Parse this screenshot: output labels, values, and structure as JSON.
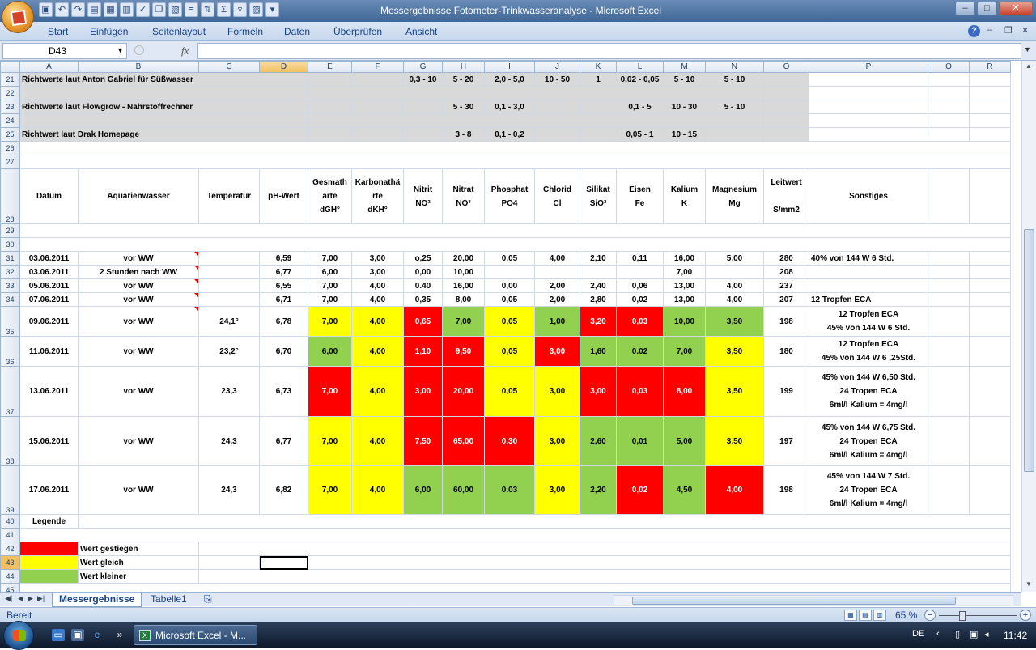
{
  "window": {
    "title": "Messergebnisse Fotometer-Trinkwasseranalyse - Microsoft Excel"
  },
  "ribbon_tabs": [
    "Start",
    "Einfügen",
    "Seitenlayout",
    "Formeln",
    "Daten",
    "Überprüfen",
    "Ansicht"
  ],
  "formula_bar": {
    "name_box": "D43",
    "fx": "fx",
    "value": ""
  },
  "columns": [
    "A",
    "B",
    "C",
    "D",
    "E",
    "F",
    "G",
    "H",
    "I",
    "J",
    "K",
    "L",
    "M",
    "N",
    "O",
    "P",
    "Q",
    "R"
  ],
  "reference_rows": {
    "r21": {
      "label": "Richtwerte laut Anton Gabriel für Süßwasser",
      "G": "0,3 - 10",
      "H": "5 - 20",
      "I": "2,0 - 5,0",
      "J": "10 - 50",
      "K": "1",
      "L": "0,02 - 0,05",
      "M": "5 - 10",
      "N": "5 - 10"
    },
    "r23": {
      "label": "Richtwerte laut Flowgrow - Nährstoffrechner",
      "H": "5 - 30",
      "I": "0,1 - 3,0",
      "L": "0,1 - 5",
      "M": "10 - 30",
      "N": "5 - 10"
    },
    "r25": {
      "label": "Richtwert laut Drak Homepage",
      "H": "3 - 8",
      "I": "0,1 - 0,2",
      "L": "0,05 - 1",
      "M": "10 - 15"
    }
  },
  "header": {
    "A": "Datum",
    "B": "Aquarienwasser",
    "C": "Temperatur",
    "D": "pH-Wert",
    "E": [
      "Gesmath",
      "ärte",
      "dGH°"
    ],
    "F": [
      "Karbonathä",
      "rte",
      "dKH°"
    ],
    "G": [
      "Nitrit",
      "NO²"
    ],
    "H": [
      "Nitrat",
      "NO³"
    ],
    "I": [
      "Phosphat",
      "PO4"
    ],
    "J": [
      "Chlorid",
      "Cl"
    ],
    "K": [
      "Silikat",
      "SiO²"
    ],
    "L": [
      "Eisen",
      "Fe"
    ],
    "M": [
      "Kalium",
      "K"
    ],
    "N": [
      "Magnesium",
      "Mg"
    ],
    "O": [
      "Leitwert",
      "",
      "S/mm2"
    ],
    "P": "Sonstiges"
  },
  "rows": [
    {
      "n": "31",
      "A": "03.06.2011",
      "B": "vor WW",
      "C": "",
      "D": "6,59",
      "E": "7,00",
      "F": "3,00",
      "G": "o,25",
      "H": "20,00",
      "I": "0,05",
      "J": "4,00",
      "K": "2,10",
      "L": "0,11",
      "M": "16,00",
      "N": "5,00",
      "O": "280",
      "P": [
        "40% von 144 W 6 Std."
      ]
    },
    {
      "n": "32",
      "A": "03.06.2011",
      "B": "2 Stunden nach WW",
      "C": "",
      "D": "6,77",
      "E": "6,00",
      "F": "3,00",
      "G": "0,00",
      "H": "10,00",
      "I": "",
      "J": "",
      "K": "",
      "L": "",
      "M": "7,00",
      "N": "",
      "O": "208",
      "P": [
        ""
      ]
    },
    {
      "n": "33",
      "A": "05.06.2011",
      "B": "vor WW",
      "C": "",
      "D": "6,55",
      "E": "7,00",
      "F": "4,00",
      "G": "0.40",
      "H": "16,00",
      "I": "0,00",
      "J": "2,00",
      "K": "2,40",
      "L": "0,06",
      "M": "13,00",
      "N": "4,00",
      "O": "237",
      "P": [
        ""
      ]
    },
    {
      "n": "34",
      "A": "07.06.2011",
      "B": "vor WW",
      "C": "",
      "D": "6,71",
      "E": "7,00",
      "F": "4,00",
      "G": "0,35",
      "H": "8,00",
      "I": "0,05",
      "J": "2,00",
      "K": "2,80",
      "L": "0,02",
      "M": "13,00",
      "N": "4,00",
      "O": "207",
      "P": [
        "12 Tropfen ECA"
      ]
    },
    {
      "n": "35",
      "A": "09.06.2011",
      "B": "vor WW",
      "C": "24,1°",
      "D": "6,78",
      "E": "7,00",
      "F": "4,00",
      "G": "0,65",
      "H": "7,00",
      "I": "0,05",
      "J": "1,00",
      "K": "3,20",
      "L": "0,03",
      "M": "10,00",
      "N": "3,50",
      "O": "198",
      "P": [
        "12 Tropfen ECA",
        "45% von 144 W 6 Std."
      ]
    },
    {
      "n": "36",
      "A": "11.06.2011",
      "B": "vor WW",
      "C": "23,2°",
      "D": "6,70",
      "E": "6,00",
      "F": "4,00",
      "G": "1,10",
      "H": "9,50",
      "I": "0,05",
      "J": "3,00",
      "K": "1,60",
      "L": "0.02",
      "M": "7,00",
      "N": "3,50",
      "O": "180",
      "P": [
        "12 Tropfen ECA",
        "45% von 144 W 6 ,25Std."
      ]
    },
    {
      "n": "37",
      "A": "13.06.2011",
      "B": "vor WW",
      "C": "23,3",
      "D": "6,73",
      "E": "7,00",
      "F": "4,00",
      "G": "3,00",
      "H": "20,00",
      "I": "0,05",
      "J": "3,00",
      "K": "3,00",
      "L": "0,03",
      "M": "8,00",
      "N": "3,50",
      "O": "199",
      "P": [
        "45% von 144 W 6,50 Std.",
        "24 Tropen ECA",
        "6ml/l Kalium =  4mg/l"
      ]
    },
    {
      "n": "38",
      "A": "15.06.2011",
      "B": "vor WW",
      "C": "24,3",
      "D": "6,77",
      "E": "7,00",
      "F": "4,00",
      "G": "7,50",
      "H": "65,00",
      "I": "0,30",
      "J": "3,00",
      "K": "2,60",
      "L": "0,01",
      "M": "5,00",
      "N": "3,50",
      "O": "197",
      "P": [
        "45% von 144 W 6,75 Std.",
        "24 Tropen ECA",
        "6ml/l Kalium =  4mg/l"
      ]
    },
    {
      "n": "39",
      "A": "17.06.2011",
      "B": "vor WW",
      "C": "24,3",
      "D": "6,82",
      "E": "7,00",
      "F": "4,00",
      "G": "6,00",
      "H": "60,00",
      "I": "0.03",
      "J": "3,00",
      "K": "2,20",
      "L": "0,02",
      "M": "4,50",
      "N": "4,00",
      "O": "198",
      "P": [
        "45% von 144 W 7 Std.",
        "24 Tropen ECA",
        "6ml/l Kalium =  4mg/l"
      ]
    }
  ],
  "legend": {
    "title": "Legende",
    "items": [
      "Wert gestiegen",
      "Wert gleich",
      "Wert kleiner"
    ]
  },
  "colors": {
    "red": "#ff0000",
    "yellow": "#ffff00",
    "green": "#92d050",
    "reference_gray": "#d9d9d9"
  },
  "sheet_tabs": [
    "Messergebnisse",
    "Tabelle1"
  ],
  "status": {
    "text": "Bereit",
    "zoom": "65 %"
  },
  "taskbar": {
    "excel_button": "Microsoft Excel - M...",
    "lang": "DE",
    "clock": "11:42"
  }
}
